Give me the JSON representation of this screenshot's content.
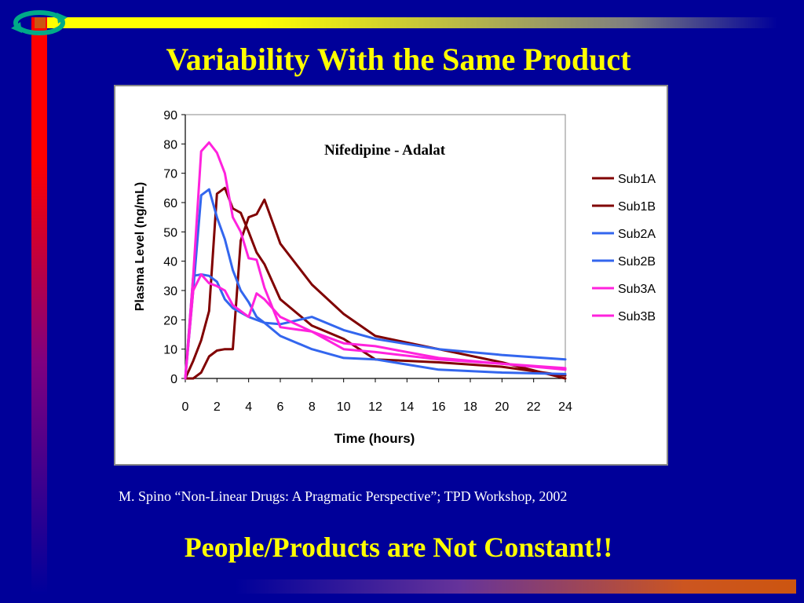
{
  "slide": {
    "title": "Variability With the Same Product",
    "citation": "M. Spino “Non-Linear Drugs: A Pragmatic Perspective”; TPD Workshop, 2002",
    "footer": "People/Products are Not Constant!!"
  },
  "colors": {
    "background": "#000099",
    "title": "#ffff00",
    "citation": "#ffffff"
  },
  "chart_data": {
    "type": "line",
    "title": "Nifedipine - Adalat",
    "xlabel": "Time (hours)",
    "ylabel": "Plasma Level (ng/mL)",
    "xlim": [
      0,
      24
    ],
    "ylim": [
      0,
      90
    ],
    "xticks": [
      0,
      2,
      4,
      6,
      8,
      10,
      12,
      14,
      16,
      18,
      20,
      22,
      24
    ],
    "yticks": [
      0,
      10,
      20,
      30,
      40,
      50,
      60,
      70,
      80,
      90
    ],
    "grid": false,
    "legend_position": "right",
    "series": [
      {
        "name": "Sub1A",
        "color": "#800000",
        "points": [
          [
            0,
            0
          ],
          [
            0.5,
            0
          ],
          [
            1,
            2
          ],
          [
            1.5,
            7.5
          ],
          [
            2,
            9.5
          ],
          [
            2.5,
            10
          ],
          [
            3,
            10
          ],
          [
            3.5,
            47
          ],
          [
            4,
            55
          ],
          [
            4.5,
            56
          ],
          [
            5,
            61
          ],
          [
            6,
            46
          ],
          [
            8,
            32
          ],
          [
            10,
            22
          ],
          [
            12,
            14.5
          ],
          [
            16,
            10
          ],
          [
            20,
            5.5
          ],
          [
            24,
            0
          ]
        ]
      },
      {
        "name": "Sub1B",
        "color": "#800000",
        "points": [
          [
            0,
            0
          ],
          [
            0.5,
            6
          ],
          [
            1,
            13
          ],
          [
            1.5,
            23
          ],
          [
            2,
            63
          ],
          [
            2.5,
            65
          ],
          [
            3,
            58
          ],
          [
            3.5,
            56.5
          ],
          [
            4,
            50
          ],
          [
            4.5,
            43
          ],
          [
            5,
            39
          ],
          [
            6,
            27
          ],
          [
            8,
            18
          ],
          [
            10,
            13.5
          ],
          [
            12,
            6.5
          ],
          [
            16,
            5.5
          ],
          [
            20,
            4
          ],
          [
            24,
            1
          ]
        ]
      },
      {
        "name": "Sub2A",
        "color": "#3366ee",
        "points": [
          [
            0,
            0
          ],
          [
            0.5,
            35
          ],
          [
            1,
            35.5
          ],
          [
            1.5,
            35
          ],
          [
            2,
            33
          ],
          [
            2.5,
            27
          ],
          [
            3,
            24
          ],
          [
            4,
            21
          ],
          [
            5,
            19
          ],
          [
            6,
            18.5
          ],
          [
            8,
            21
          ],
          [
            10,
            16.5
          ],
          [
            12,
            13.5
          ],
          [
            16,
            10
          ],
          [
            20,
            8
          ],
          [
            24,
            6.5
          ]
        ]
      },
      {
        "name": "Sub2B",
        "color": "#3366ee",
        "points": [
          [
            0,
            0
          ],
          [
            0.5,
            30
          ],
          [
            1,
            62.5
          ],
          [
            1.5,
            64.5
          ],
          [
            2,
            55
          ],
          [
            2.5,
            47.5
          ],
          [
            3,
            37
          ],
          [
            3.5,
            30
          ],
          [
            4,
            26
          ],
          [
            4.5,
            21
          ],
          [
            5,
            19
          ],
          [
            6,
            14.5
          ],
          [
            8,
            10
          ],
          [
            10,
            7
          ],
          [
            12,
            6.5
          ],
          [
            16,
            3
          ],
          [
            20,
            2
          ],
          [
            24,
            1.5
          ]
        ]
      },
      {
        "name": "Sub3A",
        "color": "#ff22dd",
        "points": [
          [
            0,
            0
          ],
          [
            0.5,
            30
          ],
          [
            1,
            35.5
          ],
          [
            1.5,
            32.5
          ],
          [
            2,
            31.5
          ],
          [
            2.5,
            30
          ],
          [
            3,
            25
          ],
          [
            4,
            21
          ],
          [
            4.5,
            29
          ],
          [
            5,
            27
          ],
          [
            6,
            21
          ],
          [
            8,
            16
          ],
          [
            10,
            12
          ],
          [
            12,
            11
          ],
          [
            16,
            7
          ],
          [
            20,
            5
          ],
          [
            24,
            3.5
          ]
        ]
      },
      {
        "name": "Sub3B",
        "color": "#ff22dd",
        "points": [
          [
            0,
            0
          ],
          [
            0.5,
            35
          ],
          [
            1,
            77.5
          ],
          [
            1.5,
            80.5
          ],
          [
            2,
            77
          ],
          [
            2.5,
            70
          ],
          [
            3,
            55
          ],
          [
            3.5,
            50
          ],
          [
            4,
            41
          ],
          [
            4.5,
            40.5
          ],
          [
            5,
            31
          ],
          [
            6,
            17.5
          ],
          [
            8,
            16
          ],
          [
            10,
            10
          ],
          [
            12,
            9
          ],
          [
            16,
            6.5
          ],
          [
            20,
            5
          ],
          [
            24,
            3
          ]
        ]
      }
    ]
  }
}
